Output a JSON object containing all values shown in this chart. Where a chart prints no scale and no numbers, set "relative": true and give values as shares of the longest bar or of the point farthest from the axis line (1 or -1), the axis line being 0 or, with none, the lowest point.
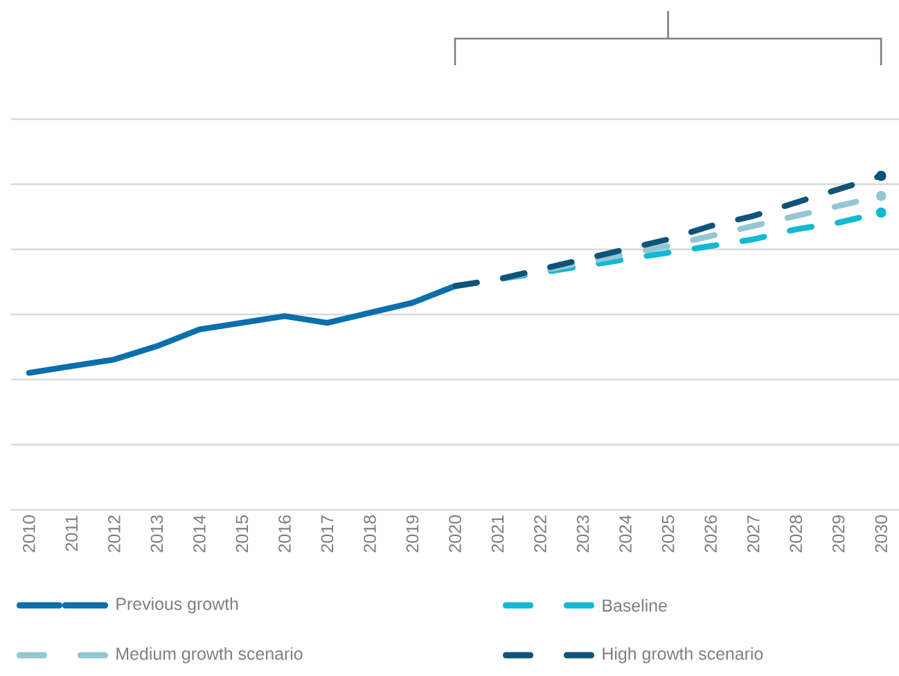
{
  "chart_data": {
    "type": "line",
    "relative": true,
    "grid": "y",
    "legend": "bottom",
    "categories": [
      "2010",
      "2011",
      "2012",
      "2013",
      "2014",
      "2015",
      "2016",
      "2017",
      "2018",
      "2019",
      "2020",
      "2021",
      "2022",
      "2023",
      "2024",
      "2025",
      "2026",
      "2027",
      "2028",
      "2029",
      "2030"
    ],
    "series": [
      {
        "name": "Previous growth",
        "color": "#0a6fad",
        "line_style": "solid",
        "values": [
          0.41,
          0.43,
          0.45,
          0.49,
          0.54,
          0.56,
          0.58,
          0.56,
          0.59,
          0.62,
          0.67,
          null,
          null,
          null,
          null,
          null,
          null,
          null,
          null,
          null,
          null
        ]
      },
      {
        "name": "Baseline",
        "color": "#12b8d4",
        "line_style": "dashed",
        "values": [
          null,
          null,
          null,
          null,
          null,
          null,
          null,
          null,
          null,
          null,
          0.67,
          0.69,
          0.71,
          0.73,
          0.75,
          0.77,
          0.79,
          0.81,
          0.84,
          0.86,
          0.89
        ]
      },
      {
        "name": "Medium growth scenario",
        "color": "#94c6d3",
        "line_style": "dashed",
        "values": [
          null,
          null,
          null,
          null,
          null,
          null,
          null,
          null,
          null,
          null,
          0.67,
          0.69,
          0.715,
          0.74,
          0.765,
          0.79,
          0.82,
          0.85,
          0.88,
          0.91,
          0.94
        ]
      },
      {
        "name": "High growth scenario",
        "color": "#0f5478",
        "line_style": "dashed",
        "values": [
          null,
          null,
          null,
          null,
          null,
          null,
          null,
          null,
          null,
          null,
          0.67,
          0.69,
          0.72,
          0.75,
          0.78,
          0.81,
          0.85,
          0.88,
          0.92,
          0.96,
          1.0
        ]
      }
    ]
  }
}
